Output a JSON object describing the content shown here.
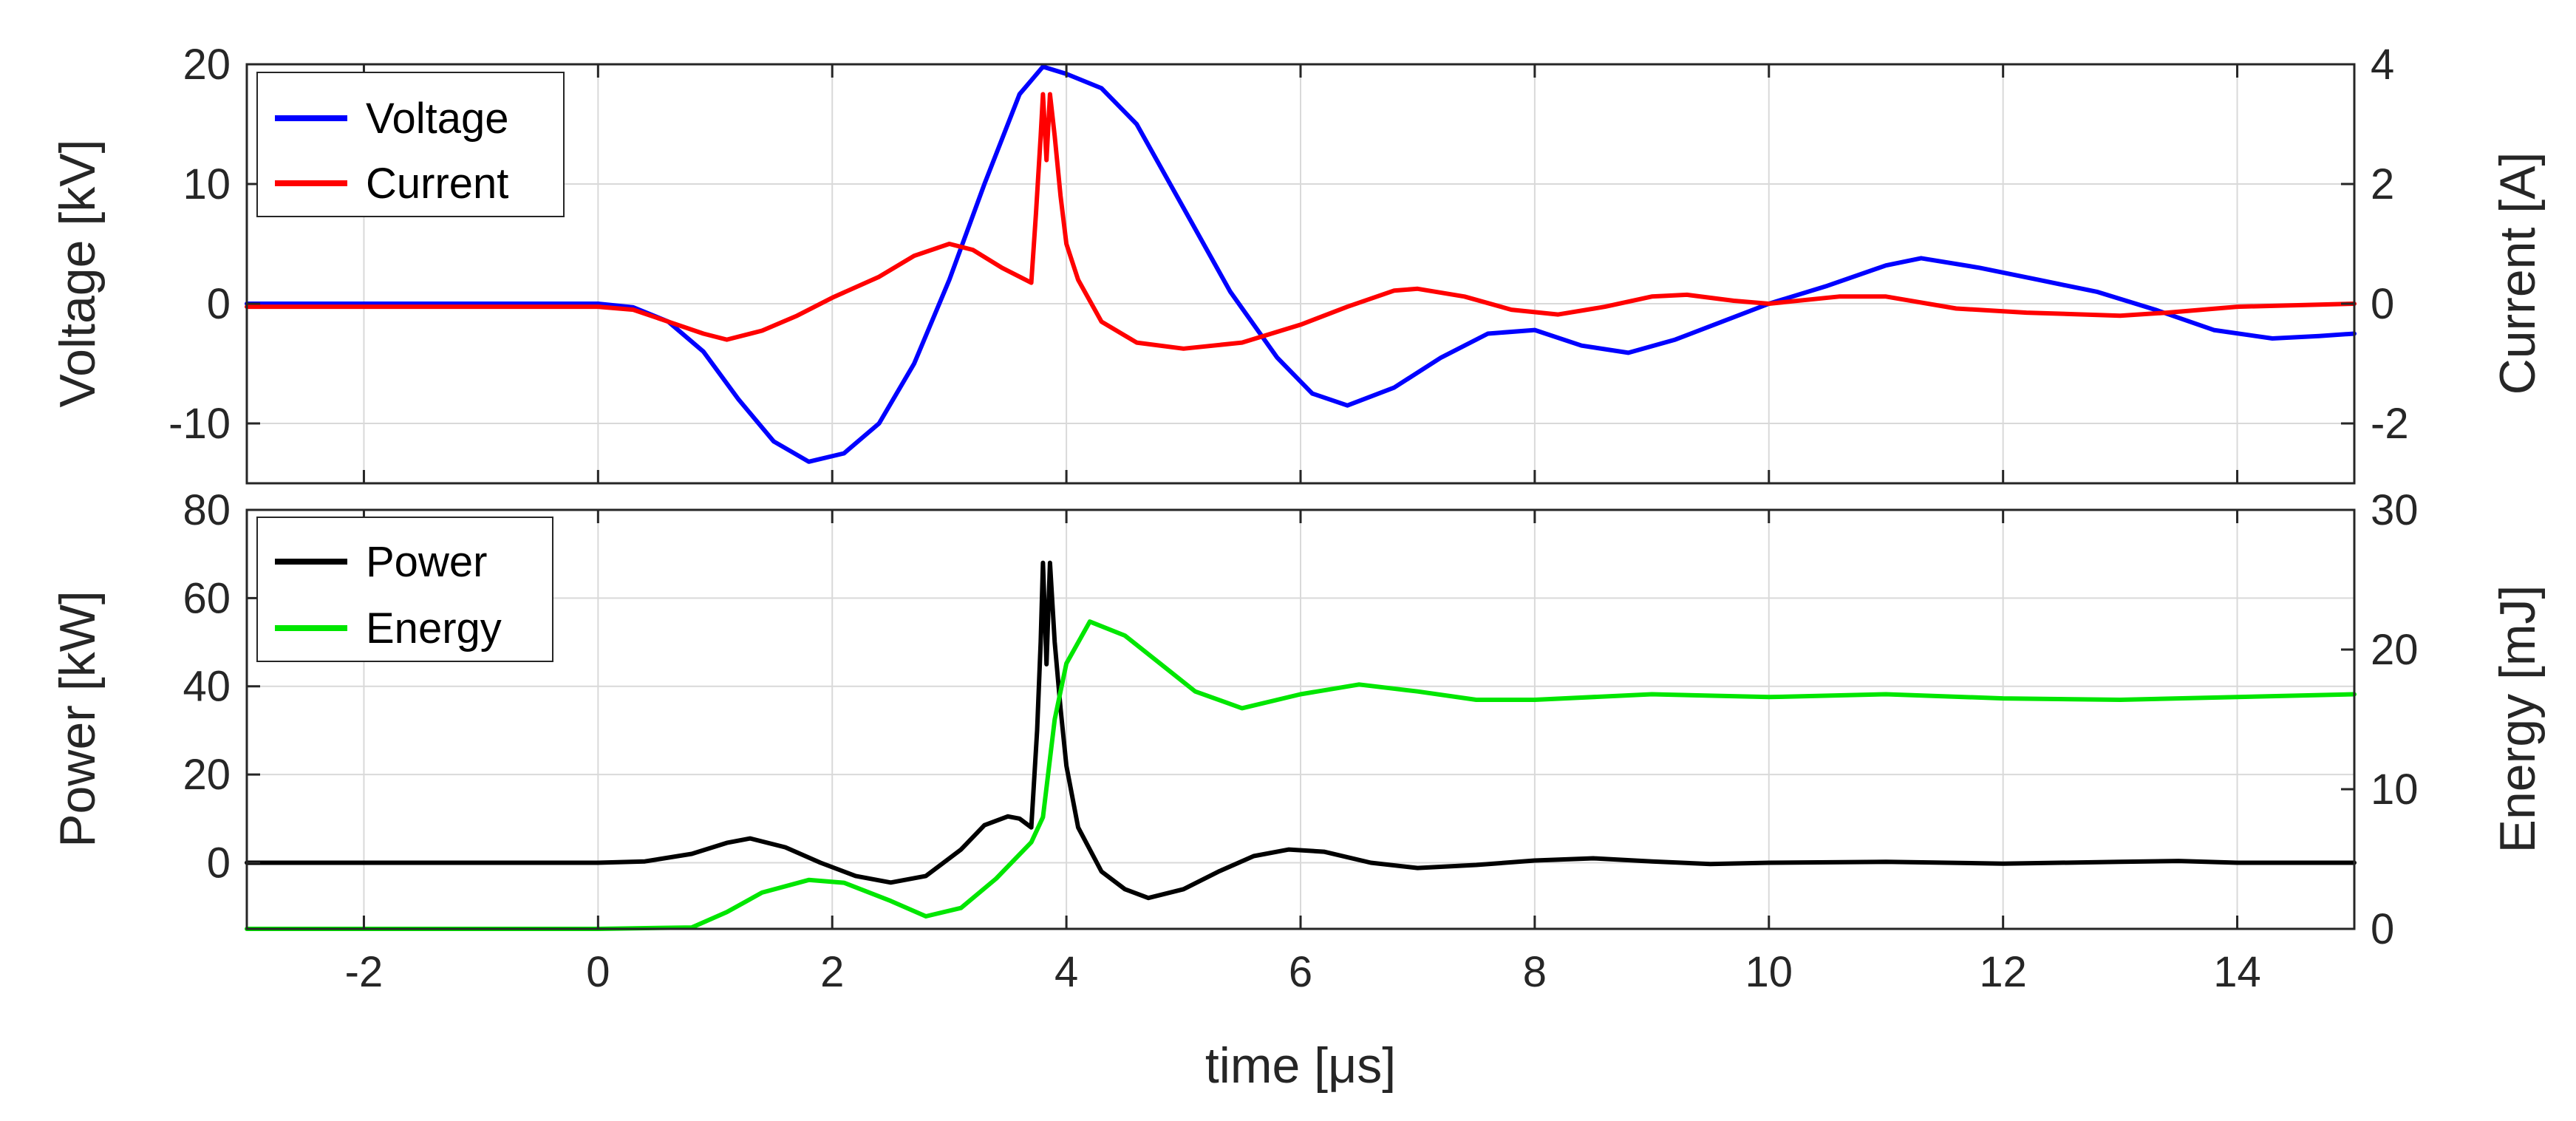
{
  "chart_data": [
    {
      "type": "line",
      "xlim": [
        -3,
        15
      ],
      "xticks": [
        "-2",
        "0",
        "2",
        "4",
        "6",
        "8",
        "10",
        "12",
        "14"
      ],
      "xtick_values": [
        -2,
        0,
        2,
        4,
        6,
        8,
        10,
        12,
        14
      ],
      "left_axis": {
        "label": "Voltage [kV]",
        "ylim": [
          -15,
          20
        ],
        "ticks": [
          -10,
          0,
          10,
          20
        ],
        "tick_labels": [
          "-10",
          "0",
          "10",
          "20"
        ]
      },
      "right_axis": {
        "label": "Current [A]",
        "ylim": [
          -3,
          4
        ],
        "ticks": [
          -2,
          0,
          2,
          4
        ],
        "tick_labels": [
          "-2",
          "0",
          "2",
          "4"
        ]
      },
      "grid": true,
      "legend_placement": "top-left",
      "series": [
        {
          "name": "Voltage",
          "axis": "left",
          "color": "#0000ff",
          "points": [
            [
              -3,
              0
            ],
            [
              0,
              0
            ],
            [
              0.3,
              -0.3
            ],
            [
              0.6,
              -1.5
            ],
            [
              0.9,
              -4
            ],
            [
              1.2,
              -8
            ],
            [
              1.5,
              -11.5
            ],
            [
              1.8,
              -13.2
            ],
            [
              2.1,
              -12.5
            ],
            [
              2.4,
              -10
            ],
            [
              2.7,
              -5
            ],
            [
              3.0,
              2
            ],
            [
              3.3,
              10
            ],
            [
              3.6,
              17.5
            ],
            [
              3.8,
              19.8
            ],
            [
              4.0,
              19.2
            ],
            [
              4.3,
              18
            ],
            [
              4.6,
              15
            ],
            [
              5.0,
              8
            ],
            [
              5.4,
              1
            ],
            [
              5.8,
              -4.5
            ],
            [
              6.1,
              -7.5
            ],
            [
              6.4,
              -8.5
            ],
            [
              6.8,
              -7
            ],
            [
              7.2,
              -4.5
            ],
            [
              7.6,
              -2.5
            ],
            [
              8.0,
              -2.2
            ],
            [
              8.4,
              -3.5
            ],
            [
              8.8,
              -4.1
            ],
            [
              9.2,
              -3
            ],
            [
              9.6,
              -1.5
            ],
            [
              10.0,
              0
            ],
            [
              10.5,
              1.5
            ],
            [
              11.0,
              3.2
            ],
            [
              11.3,
              3.8
            ],
            [
              11.8,
              3
            ],
            [
              12.3,
              2
            ],
            [
              12.8,
              1
            ],
            [
              13.3,
              -0.5
            ],
            [
              13.8,
              -2.2
            ],
            [
              14.3,
              -2.9
            ],
            [
              14.7,
              -2.7
            ],
            [
              15,
              -2.5
            ]
          ]
        },
        {
          "name": "Current",
          "axis": "right",
          "color": "#ff0000",
          "points": [
            [
              -3,
              -0.05
            ],
            [
              0,
              -0.05
            ],
            [
              0.3,
              -0.1
            ],
            [
              0.6,
              -0.3
            ],
            [
              0.9,
              -0.5
            ],
            [
              1.1,
              -0.6
            ],
            [
              1.4,
              -0.45
            ],
            [
              1.7,
              -0.2
            ],
            [
              2.0,
              0.1
            ],
            [
              2.4,
              0.45
            ],
            [
              2.7,
              0.8
            ],
            [
              3.0,
              1.0
            ],
            [
              3.2,
              0.9
            ],
            [
              3.45,
              0.6
            ],
            [
              3.7,
              0.35
            ],
            [
              3.74,
              1.5
            ],
            [
              3.78,
              2.8
            ],
            [
              3.8,
              3.5
            ],
            [
              3.83,
              2.4
            ],
            [
              3.86,
              3.5
            ],
            [
              3.9,
              2.8
            ],
            [
              3.95,
              1.8
            ],
            [
              4.0,
              1.0
            ],
            [
              4.1,
              0.4
            ],
            [
              4.3,
              -0.3
            ],
            [
              4.6,
              -0.65
            ],
            [
              5.0,
              -0.75
            ],
            [
              5.5,
              -0.65
            ],
            [
              6.0,
              -0.35
            ],
            [
              6.4,
              -0.05
            ],
            [
              6.8,
              0.22
            ],
            [
              7.0,
              0.25
            ],
            [
              7.4,
              0.12
            ],
            [
              7.8,
              -0.1
            ],
            [
              8.2,
              -0.18
            ],
            [
              8.6,
              -0.05
            ],
            [
              9.0,
              0.12
            ],
            [
              9.3,
              0.15
            ],
            [
              9.7,
              0.05
            ],
            [
              10.0,
              0
            ],
            [
              10.6,
              0.12
            ],
            [
              11.0,
              0.12
            ],
            [
              11.6,
              -0.08
            ],
            [
              12.2,
              -0.15
            ],
            [
              13.0,
              -0.2
            ],
            [
              13.4,
              -0.15
            ],
            [
              14.0,
              -0.05
            ],
            [
              15,
              0
            ]
          ]
        }
      ]
    },
    {
      "type": "line",
      "xlabel": "time [μs]",
      "xlim": [
        -3,
        15
      ],
      "xticks": [
        "-2",
        "0",
        "2",
        "4",
        "6",
        "8",
        "10",
        "12",
        "14"
      ],
      "xtick_values": [
        -2,
        0,
        2,
        4,
        6,
        8,
        10,
        12,
        14
      ],
      "left_axis": {
        "label": "Power [kW]",
        "ylim": [
          -15,
          80
        ],
        "ticks": [
          0,
          20,
          40,
          60,
          80
        ],
        "tick_labels": [
          "0",
          "20",
          "40",
          "60",
          "80"
        ]
      },
      "right_axis": {
        "label": "Energy [mJ]",
        "ylim": [
          0,
          30
        ],
        "ticks": [
          0,
          10,
          20,
          30
        ],
        "tick_labels": [
          "0",
          "10",
          "20",
          "30"
        ]
      },
      "grid": true,
      "legend_placement": "top-left",
      "series": [
        {
          "name": "Power",
          "axis": "left",
          "color": "#000000",
          "points": [
            [
              -3,
              0
            ],
            [
              0,
              0
            ],
            [
              0.4,
              0.3
            ],
            [
              0.8,
              2
            ],
            [
              1.1,
              4.5
            ],
            [
              1.3,
              5.5
            ],
            [
              1.6,
              3.5
            ],
            [
              1.9,
              0
            ],
            [
              2.2,
              -3
            ],
            [
              2.5,
              -4.5
            ],
            [
              2.8,
              -3
            ],
            [
              3.1,
              3
            ],
            [
              3.3,
              8.5
            ],
            [
              3.5,
              10.5
            ],
            [
              3.6,
              10
            ],
            [
              3.7,
              8
            ],
            [
              3.75,
              30
            ],
            [
              3.78,
              50
            ],
            [
              3.8,
              68
            ],
            [
              3.83,
              45
            ],
            [
              3.86,
              68
            ],
            [
              3.9,
              50
            ],
            [
              3.95,
              35
            ],
            [
              4.0,
              22
            ],
            [
              4.1,
              8
            ],
            [
              4.3,
              -2
            ],
            [
              4.5,
              -6
            ],
            [
              4.7,
              -8
            ],
            [
              5.0,
              -6
            ],
            [
              5.3,
              -2
            ],
            [
              5.6,
              1.5
            ],
            [
              5.9,
              3
            ],
            [
              6.2,
              2.5
            ],
            [
              6.6,
              0
            ],
            [
              7.0,
              -1.2
            ],
            [
              7.5,
              -0.5
            ],
            [
              8.0,
              0.5
            ],
            [
              8.5,
              1
            ],
            [
              9.0,
              0.3
            ],
            [
              9.5,
              -0.3
            ],
            [
              10.0,
              0
            ],
            [
              11.0,
              0.2
            ],
            [
              12.0,
              -0.2
            ],
            [
              13.0,
              0.2
            ],
            [
              13.5,
              0.4
            ],
            [
              14.0,
              0
            ],
            [
              15,
              0
            ]
          ]
        },
        {
          "name": "Energy",
          "axis": "right",
          "color": "#00e600",
          "points": [
            [
              -3,
              0
            ],
            [
              0,
              0
            ],
            [
              0.8,
              0.1
            ],
            [
              1.1,
              1.2
            ],
            [
              1.4,
              2.6
            ],
            [
              1.8,
              3.5
            ],
            [
              2.1,
              3.3
            ],
            [
              2.5,
              2
            ],
            [
              2.8,
              0.9
            ],
            [
              3.1,
              1.5
            ],
            [
              3.4,
              3.6
            ],
            [
              3.7,
              6.2
            ],
            [
              3.8,
              8
            ],
            [
              3.9,
              15
            ],
            [
              4.0,
              19
            ],
            [
              4.2,
              22
            ],
            [
              4.5,
              21
            ],
            [
              4.8,
              19
            ],
            [
              5.1,
              17
            ],
            [
              5.5,
              15.8
            ],
            [
              6.0,
              16.8
            ],
            [
              6.5,
              17.5
            ],
            [
              7.0,
              17
            ],
            [
              7.5,
              16.4
            ],
            [
              8.0,
              16.4
            ],
            [
              9.0,
              16.8
            ],
            [
              10.0,
              16.6
            ],
            [
              11.0,
              16.8
            ],
            [
              12.0,
              16.5
            ],
            [
              13.0,
              16.4
            ],
            [
              14.0,
              16.6
            ],
            [
              15,
              16.8
            ]
          ]
        }
      ]
    }
  ]
}
